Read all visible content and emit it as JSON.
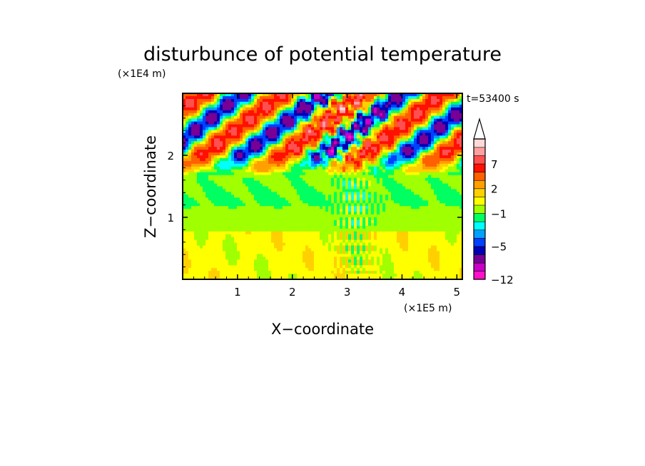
{
  "chart_data": {
    "type": "heatmap",
    "title": "disturbunce of potential temperature",
    "xlabel": "X−coordinate",
    "ylabel": "Z−coordinate",
    "x_unit_label": "(×1E5 m)",
    "y_unit_label": "(×1E4 m)",
    "time_label": "t=53400 s",
    "xlim": [
      0,
      5.1
    ],
    "ylim": [
      0,
      3.0
    ],
    "x_ticks": [
      1,
      2,
      3,
      4,
      5
    ],
    "y_ticks": [
      1,
      2
    ],
    "x_tick_labels": [
      "1",
      "2",
      "3",
      "4",
      "5"
    ],
    "y_tick_labels": [
      "1",
      "2"
    ],
    "colorbar": {
      "extend": "max",
      "levels_from_bottom": [
        -12,
        -10,
        -8,
        -6,
        -5,
        -4,
        -3,
        -2,
        -1,
        0,
        1,
        2,
        3,
        5,
        7,
        9,
        11
      ],
      "colors_from_bottom": [
        "#ff10c8",
        "#c800c8",
        "#780096",
        "#0000b4",
        "#0040ff",
        "#00a0ff",
        "#00ffff",
        "#00ff60",
        "#a0ff00",
        "#ffff00",
        "#ffd000",
        "#ffa000",
        "#ff6000",
        "#ff1000",
        "#ff5050",
        "#ffa0a0",
        "#ffd8d8"
      ],
      "labeled_levels": [
        "7",
        "2",
        "−1",
        "−5",
        "−12"
      ]
    }
  }
}
